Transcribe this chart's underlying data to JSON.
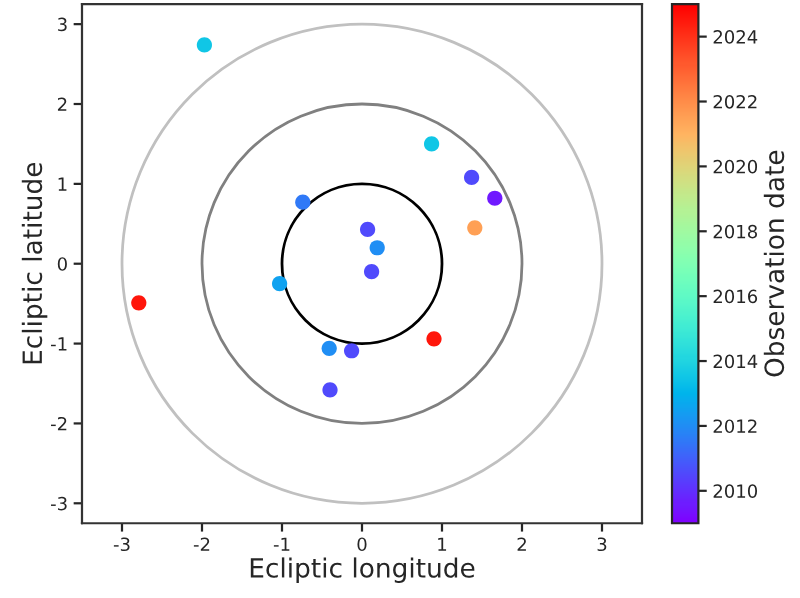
{
  "chart_data": {
    "type": "scatter",
    "xlabel": "Ecliptic longitude",
    "ylabel": "Ecliptic latitude",
    "clabel": "Observation date",
    "xlim": [
      -3.5,
      3.5
    ],
    "ylim": [
      -3.25,
      3.25
    ],
    "xticks": [
      -3,
      -2,
      -1,
      0,
      1,
      2,
      3
    ],
    "yticks": [
      -3,
      -2,
      -1,
      0,
      1,
      2,
      3
    ],
    "clim": [
      2009,
      2025
    ],
    "cticks": [
      2010,
      2012,
      2014,
      2016,
      2018,
      2020,
      2022,
      2024
    ],
    "grid": false,
    "legend": false,
    "series": [
      {
        "x": [
          -1.97,
          0.87,
          1.37,
          1.66,
          1.41,
          0.9,
          -0.74,
          0.07,
          0.19,
          0.12,
          -1.03,
          -2.79,
          -0.41,
          -0.13,
          -0.4
        ],
        "values": [
          2.74,
          1.5,
          1.08,
          0.82,
          0.45,
          -0.94,
          0.77,
          0.43,
          0.2,
          -0.1,
          -0.25,
          -0.49,
          -1.06,
          -1.09,
          -1.58
        ],
        "cvalues": [
          2013.5,
          2013.5,
          2010.5,
          2009.5,
          2021.5,
          2024.5,
          2011.5,
          2010.5,
          2012,
          2010.5,
          2012.5,
          2024.5,
          2012,
          2010.5,
          2010.5
        ]
      }
    ]
  }
}
